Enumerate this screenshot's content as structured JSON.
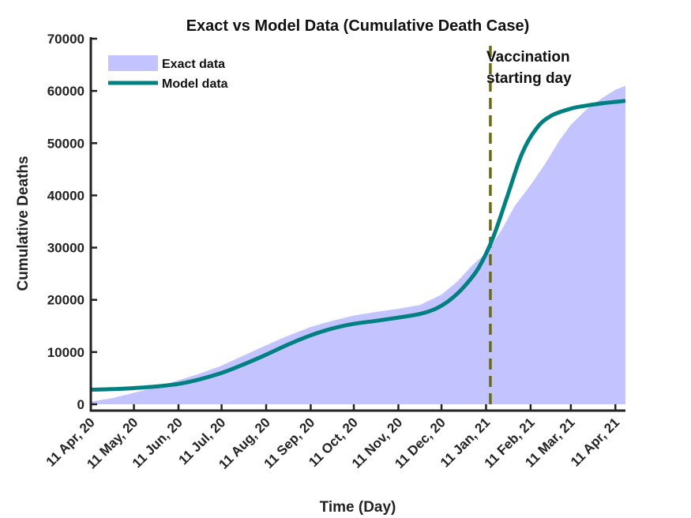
{
  "chart_data": {
    "type": "area",
    "title": "Exact vs Model Data (Cumulative Death Case)",
    "xlabel": "Time (Day)",
    "ylabel": "Cumulative Deaths",
    "ylim": [
      0,
      70000
    ],
    "yticks": [
      0,
      10000,
      20000,
      30000,
      40000,
      50000,
      60000,
      70000
    ],
    "xlim_days": [
      0,
      372
    ],
    "xticks": [
      {
        "label": "11 Apr, 20",
        "day": 0
      },
      {
        "label": "11 May, 20",
        "day": 30
      },
      {
        "label": "11 Jun, 20",
        "day": 61
      },
      {
        "label": "11 Jul, 20",
        "day": 91
      },
      {
        "label": "11 Aug, 20",
        "day": 122
      },
      {
        "label": "11 Sep, 20",
        "day": 153
      },
      {
        "label": "11 Oct, 20",
        "day": 183
      },
      {
        "label": "11 Nov, 20",
        "day": 214
      },
      {
        "label": "11 Dec, 20",
        "day": 244
      },
      {
        "label": "11 Jan, 21",
        "day": 275
      },
      {
        "label": "11 Feb, 21",
        "day": 306
      },
      {
        "label": "11 Mar, 21",
        "day": 334
      },
      {
        "label": "11 Apr, 21",
        "day": 365
      }
    ],
    "legend_position": "top-left",
    "series": [
      {
        "name": "Exact data",
        "kind": "area",
        "color": "#c3c3ff",
        "points": [
          [
            0,
            500
          ],
          [
            15,
            1200
          ],
          [
            30,
            2200
          ],
          [
            45,
            3200
          ],
          [
            61,
            4600
          ],
          [
            76,
            5900
          ],
          [
            91,
            7400
          ],
          [
            106,
            9300
          ],
          [
            122,
            11300
          ],
          [
            137,
            13100
          ],
          [
            153,
            14800
          ],
          [
            168,
            16000
          ],
          [
            183,
            17000
          ],
          [
            199,
            17700
          ],
          [
            214,
            18300
          ],
          [
            229,
            19000
          ],
          [
            244,
            21000
          ],
          [
            255,
            23500
          ],
          [
            265,
            26500
          ],
          [
            275,
            29000
          ],
          [
            285,
            33000
          ],
          [
            295,
            38000
          ],
          [
            306,
            42000
          ],
          [
            316,
            46000
          ],
          [
            326,
            50500
          ],
          [
            334,
            53500
          ],
          [
            345,
            56500
          ],
          [
            355,
            58500
          ],
          [
            365,
            60200
          ],
          [
            372,
            61000
          ]
        ]
      },
      {
        "name": "Model data",
        "kind": "line",
        "color": "#008080",
        "points": [
          [
            0,
            2800
          ],
          [
            15,
            2900
          ],
          [
            30,
            3100
          ],
          [
            45,
            3400
          ],
          [
            61,
            3900
          ],
          [
            76,
            4800
          ],
          [
            91,
            6000
          ],
          [
            106,
            7600
          ],
          [
            122,
            9500
          ],
          [
            137,
            11400
          ],
          [
            153,
            13200
          ],
          [
            168,
            14500
          ],
          [
            183,
            15400
          ],
          [
            199,
            16000
          ],
          [
            214,
            16600
          ],
          [
            229,
            17300
          ],
          [
            240,
            18300
          ],
          [
            250,
            20000
          ],
          [
            260,
            22600
          ],
          [
            270,
            26200
          ],
          [
            280,
            32000
          ],
          [
            290,
            40000
          ],
          [
            300,
            48000
          ],
          [
            310,
            52800
          ],
          [
            320,
            55200
          ],
          [
            334,
            56600
          ],
          [
            345,
            57200
          ],
          [
            355,
            57600
          ],
          [
            365,
            57900
          ],
          [
            372,
            58100
          ]
        ]
      }
    ],
    "annotations": [
      {
        "type": "vline",
        "day": 278,
        "color": "#6b6b10",
        "style": "dashed",
        "text_lines": [
          "Vaccination",
          "starting day"
        ]
      }
    ]
  }
}
